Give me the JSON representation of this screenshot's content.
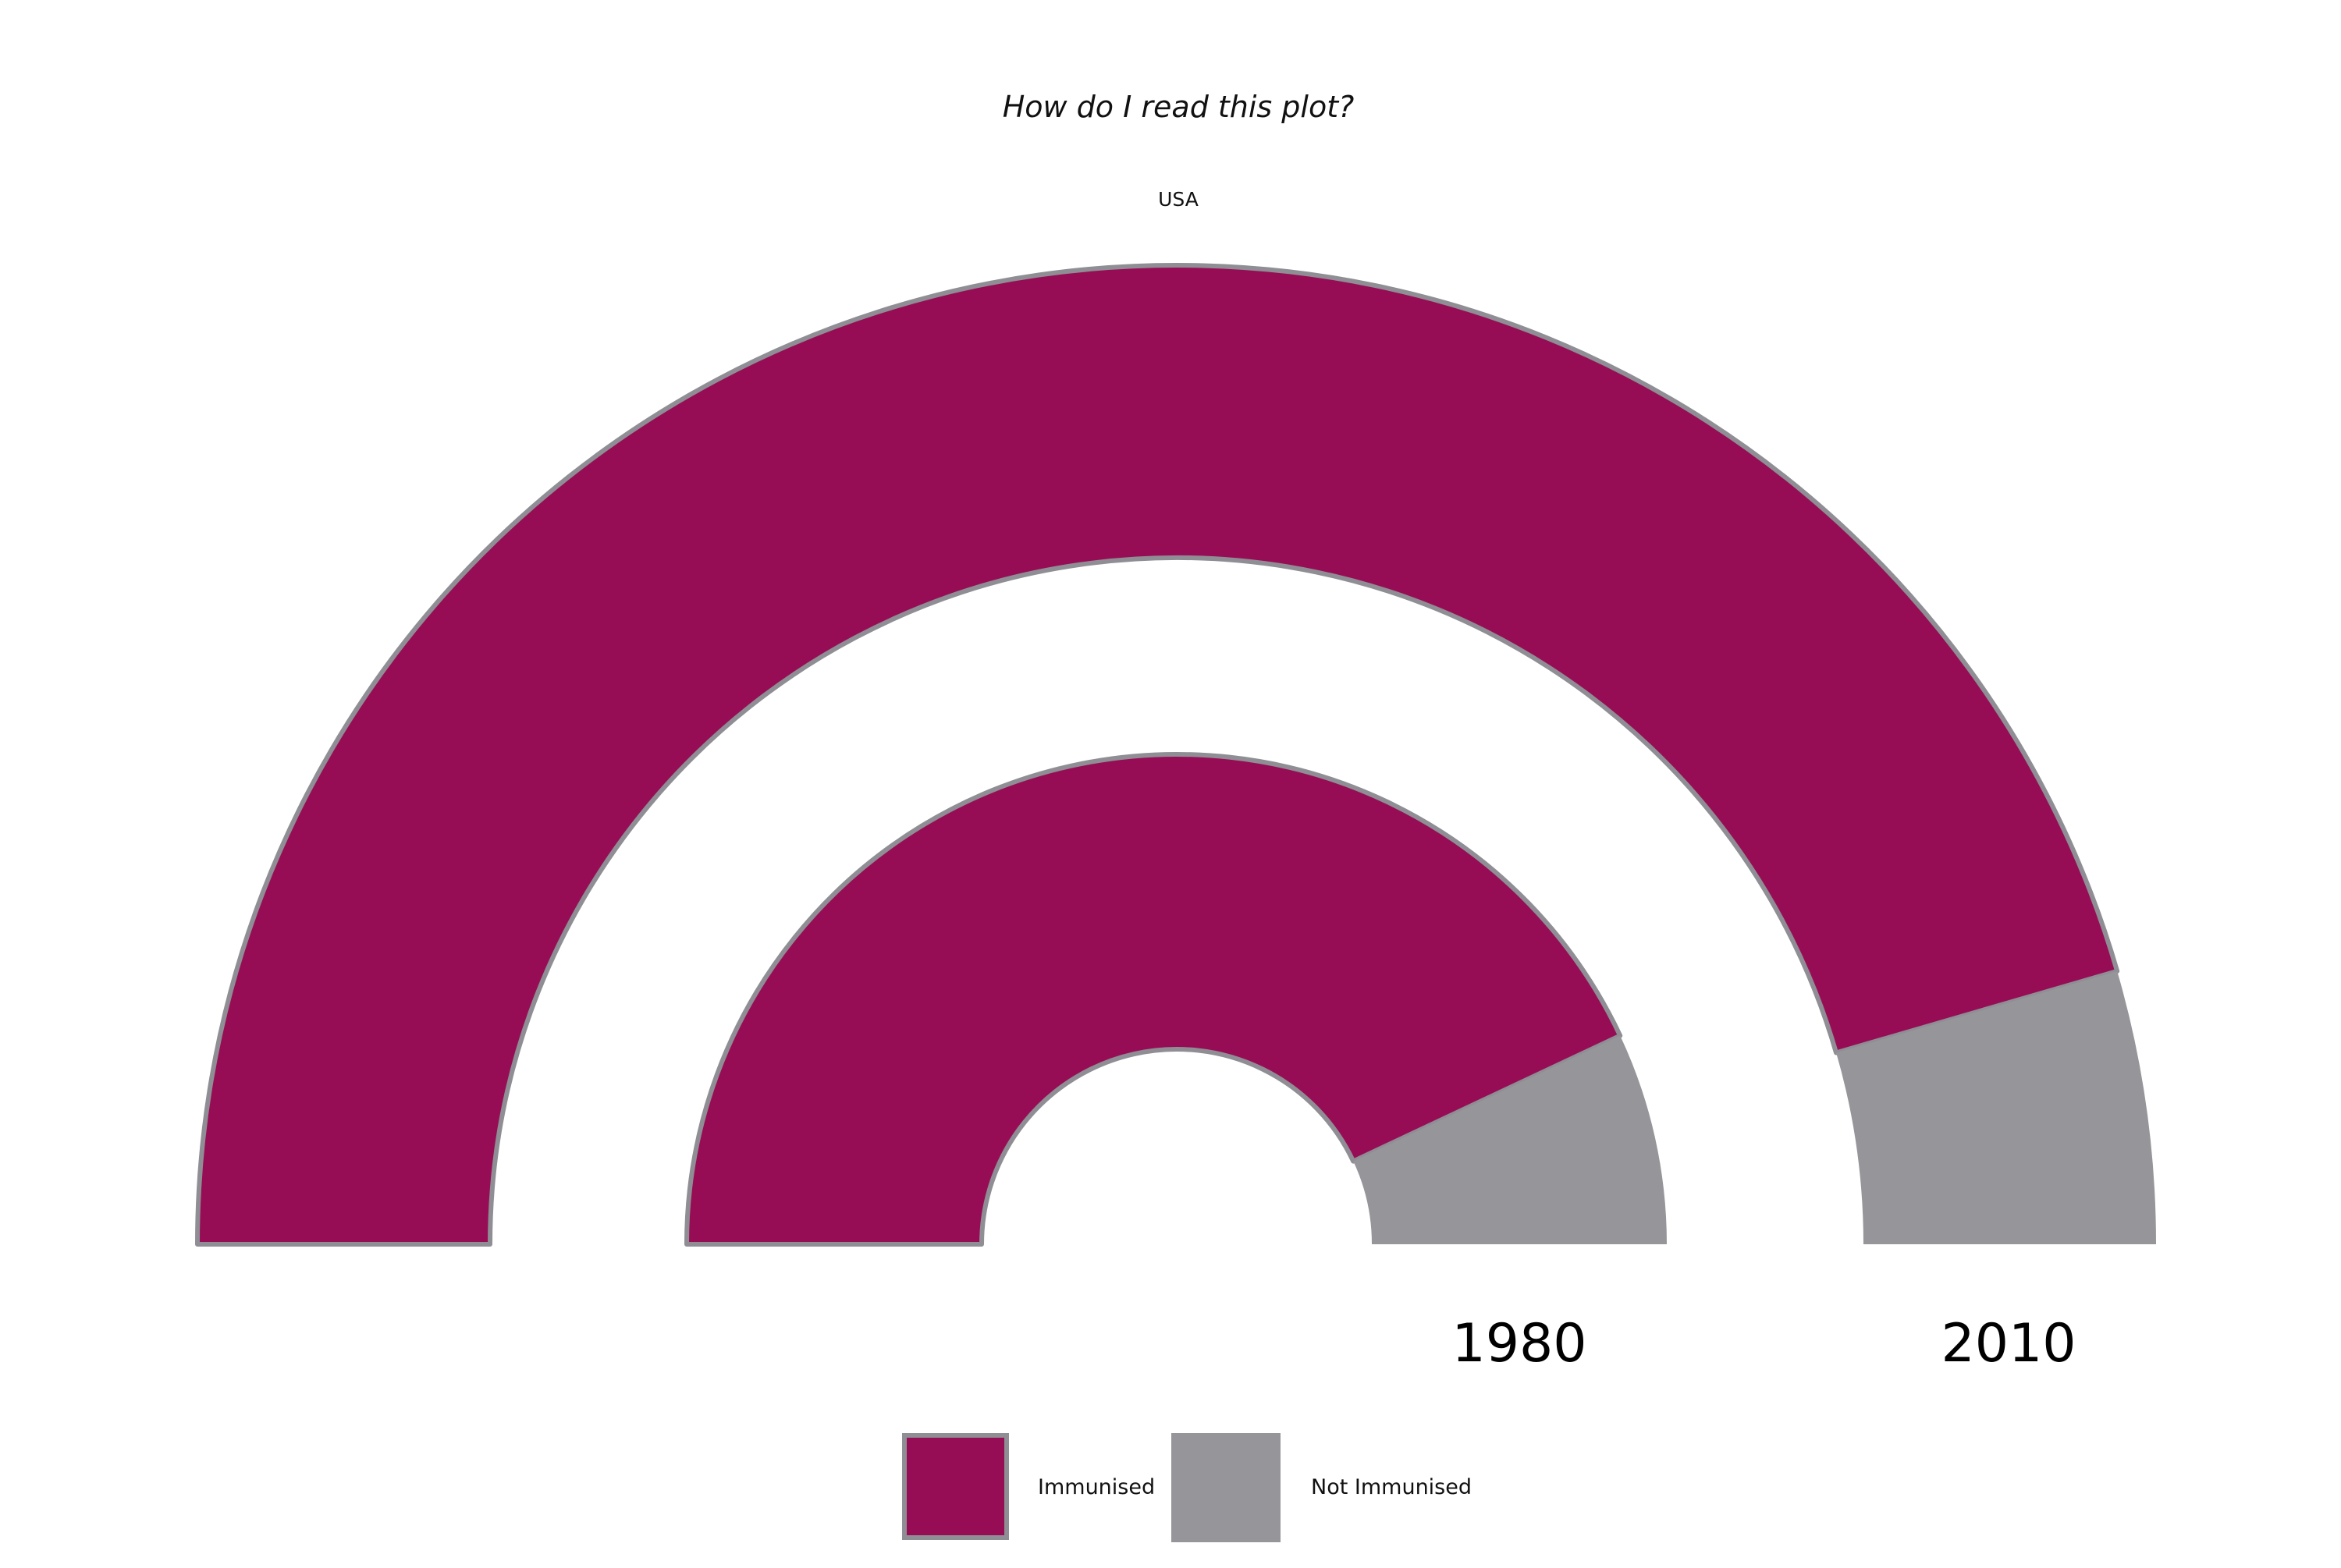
{
  "title": "How do I read this plot?",
  "subtitle": "USA",
  "colors": {
    "immunised": "#970d55",
    "not_immunised": "#96959a",
    "outline": "#8e8e94"
  },
  "legend": {
    "items": [
      {
        "label": "Immunised",
        "color": "#970d55"
      },
      {
        "label": "Not Immunised",
        "color": "#96959a"
      }
    ],
    "placement": "bottom-center"
  },
  "chart_data": {
    "type": "pie",
    "variant": "semicircle-rings",
    "title": "How do I read this plot?",
    "subtitle": "USA",
    "categories": [
      "Immunised",
      "Not Immunised"
    ],
    "series": [
      {
        "name": "1980",
        "values": [
          86,
          14
        ]
      },
      {
        "name": "2010",
        "values": [
          91,
          9
        ]
      }
    ]
  }
}
